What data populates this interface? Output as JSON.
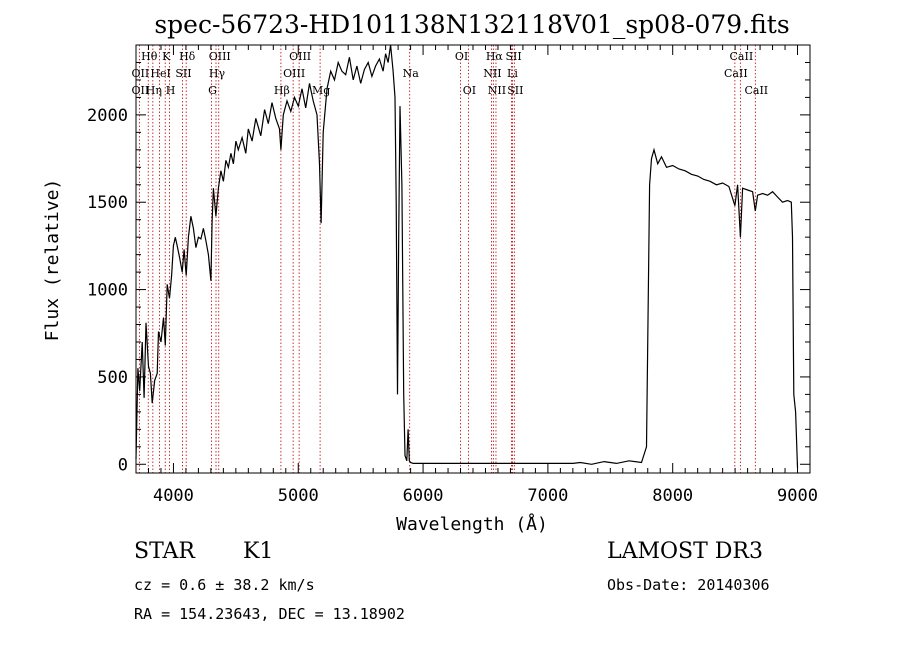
{
  "chart_data": {
    "type": "line",
    "title": "spec-56723-HD101138N132118V01_sp08-079.fits",
    "xlabel": "Wavelength (Å)",
    "ylabel": "Flux (relative)",
    "xlim": [
      3700,
      9100
    ],
    "ylim": [
      -50,
      2400
    ],
    "xticks": [
      4000,
      5000,
      6000,
      7000,
      8000,
      9000
    ],
    "yticks": [
      0,
      500,
      1000,
      1500,
      2000
    ],
    "series": [
      {
        "name": "flux",
        "points": [
          [
            3700,
            30
          ],
          [
            3715,
            550
          ],
          [
            3730,
            420
          ],
          [
            3750,
            700
          ],
          [
            3765,
            380
          ],
          [
            3780,
            810
          ],
          [
            3800,
            560
          ],
          [
            3815,
            520
          ],
          [
            3830,
            350
          ],
          [
            3850,
            480
          ],
          [
            3870,
            520
          ],
          [
            3880,
            760
          ],
          [
            3900,
            700
          ],
          [
            3920,
            840
          ],
          [
            3935,
            680
          ],
          [
            3950,
            1030
          ],
          [
            3968,
            950
          ],
          [
            3985,
            1080
          ],
          [
            4000,
            1250
          ],
          [
            4015,
            1300
          ],
          [
            4030,
            1250
          ],
          [
            4050,
            1180
          ],
          [
            4070,
            1100
          ],
          [
            4085,
            1230
          ],
          [
            4102,
            1080
          ],
          [
            4120,
            1300
          ],
          [
            4140,
            1420
          ],
          [
            4160,
            1350
          ],
          [
            4180,
            1240
          ],
          [
            4200,
            1300
          ],
          [
            4220,
            1290
          ],
          [
            4240,
            1350
          ],
          [
            4260,
            1280
          ],
          [
            4280,
            1200
          ],
          [
            4300,
            1050
          ],
          [
            4310,
            1390
          ],
          [
            4320,
            1580
          ],
          [
            4340,
            1420
          ],
          [
            4360,
            1580
          ],
          [
            4380,
            1680
          ],
          [
            4400,
            1620
          ],
          [
            4420,
            1740
          ],
          [
            4440,
            1700
          ],
          [
            4460,
            1780
          ],
          [
            4480,
            1720
          ],
          [
            4500,
            1850
          ],
          [
            4520,
            1800
          ],
          [
            4550,
            1870
          ],
          [
            4580,
            1780
          ],
          [
            4600,
            1920
          ],
          [
            4630,
            1850
          ],
          [
            4660,
            1980
          ],
          [
            4700,
            1880
          ],
          [
            4730,
            2030
          ],
          [
            4760,
            1950
          ],
          [
            4790,
            2070
          ],
          [
            4820,
            1980
          ],
          [
            4850,
            1920
          ],
          [
            4861,
            1800
          ],
          [
            4880,
            2000
          ],
          [
            4910,
            2080
          ],
          [
            4940,
            2020
          ],
          [
            4970,
            2100
          ],
          [
            5000,
            2050
          ],
          [
            5030,
            2150
          ],
          [
            5060,
            2040
          ],
          [
            5090,
            2180
          ],
          [
            5120,
            2080
          ],
          [
            5150,
            2000
          ],
          [
            5170,
            1720
          ],
          [
            5183,
            1380
          ],
          [
            5200,
            1900
          ],
          [
            5230,
            2150
          ],
          [
            5260,
            2250
          ],
          [
            5290,
            2200
          ],
          [
            5320,
            2300
          ],
          [
            5350,
            2250
          ],
          [
            5380,
            2230
          ],
          [
            5410,
            2330
          ],
          [
            5440,
            2200
          ],
          [
            5470,
            2280
          ],
          [
            5500,
            2180
          ],
          [
            5530,
            2260
          ],
          [
            5560,
            2300
          ],
          [
            5590,
            2220
          ],
          [
            5620,
            2280
          ],
          [
            5650,
            2320
          ],
          [
            5680,
            2250
          ],
          [
            5700,
            2350
          ],
          [
            5720,
            2300
          ],
          [
            5740,
            2400
          ],
          [
            5760,
            2250
          ],
          [
            5775,
            2100
          ],
          [
            5785,
            1500
          ],
          [
            5795,
            400
          ],
          [
            5805,
            1300
          ],
          [
            5815,
            2050
          ],
          [
            5830,
            1600
          ],
          [
            5845,
            400
          ],
          [
            5855,
            50
          ],
          [
            5870,
            20
          ],
          [
            5880,
            200
          ],
          [
            5890,
            20
          ],
          [
            5900,
            10
          ],
          [
            5920,
            5
          ],
          [
            6000,
            5
          ],
          [
            6500,
            5
          ],
          [
            7000,
            5
          ],
          [
            7200,
            5
          ],
          [
            7260,
            10
          ],
          [
            7350,
            0
          ],
          [
            7450,
            15
          ],
          [
            7550,
            5
          ],
          [
            7650,
            20
          ],
          [
            7750,
            10
          ],
          [
            7790,
            100
          ],
          [
            7815,
            1600
          ],
          [
            7830,
            1750
          ],
          [
            7850,
            1800
          ],
          [
            7880,
            1720
          ],
          [
            7910,
            1760
          ],
          [
            7950,
            1700
          ],
          [
            8000,
            1710
          ],
          [
            8050,
            1690
          ],
          [
            8100,
            1680
          ],
          [
            8150,
            1660
          ],
          [
            8200,
            1650
          ],
          [
            8250,
            1630
          ],
          [
            8300,
            1620
          ],
          [
            8350,
            1600
          ],
          [
            8400,
            1610
          ],
          [
            8450,
            1590
          ],
          [
            8498,
            1480
          ],
          [
            8520,
            1600
          ],
          [
            8542,
            1300
          ],
          [
            8560,
            1580
          ],
          [
            8600,
            1570
          ],
          [
            8640,
            1560
          ],
          [
            8662,
            1450
          ],
          [
            8680,
            1540
          ],
          [
            8720,
            1550
          ],
          [
            8760,
            1540
          ],
          [
            8800,
            1560
          ],
          [
            8840,
            1530
          ],
          [
            8880,
            1500
          ],
          [
            8920,
            1510
          ],
          [
            8950,
            1500
          ],
          [
            8960,
            1300
          ],
          [
            8970,
            400
          ],
          [
            8985,
            300
          ],
          [
            9000,
            -20
          ]
        ]
      }
    ],
    "lines": [
      {
        "name": "Hθ",
        "wavelength": 3798,
        "row": 0
      },
      {
        "name": "OII",
        "wavelength": 3727,
        "row": 1
      },
      {
        "name": "OII",
        "wavelength": 3727,
        "row": 2
      },
      {
        "name": "Hη",
        "wavelength": 3835,
        "row": 2
      },
      {
        "name": "HeI",
        "wavelength": 3889,
        "row": 1
      },
      {
        "name": "K",
        "wavelength": 3934,
        "row": 0
      },
      {
        "name": "H",
        "wavelength": 3969,
        "row": 2
      },
      {
        "name": "SII",
        "wavelength": 4072,
        "row": 1
      },
      {
        "name": "Hδ",
        "wavelength": 4102,
        "row": 0
      },
      {
        "name": "G",
        "wavelength": 4305,
        "row": 2
      },
      {
        "name": "OIII",
        "wavelength": 4363,
        "row": 0
      },
      {
        "name": "Hγ",
        "wavelength": 4341,
        "row": 1
      },
      {
        "name": "Hβ",
        "wavelength": 4861,
        "row": 2
      },
      {
        "name": "OIII",
        "wavelength": 4959,
        "row": 1
      },
      {
        "name": "OIII",
        "wavelength": 5007,
        "row": 0
      },
      {
        "name": "Mg",
        "wavelength": 5175,
        "row": 2
      },
      {
        "name": "Na",
        "wavelength": 5893,
        "row": 1
      },
      {
        "name": "OI",
        "wavelength": 6300,
        "row": 0
      },
      {
        "name": "OI",
        "wavelength": 6363,
        "row": 2
      },
      {
        "name": "NII",
        "wavelength": 6548,
        "row": 1
      },
      {
        "name": "Hα",
        "wavelength": 6563,
        "row": 0
      },
      {
        "name": "NII",
        "wavelength": 6584,
        "row": 2
      },
      {
        "name": "Li",
        "wavelength": 6708,
        "row": 1
      },
      {
        "name": "SII",
        "wavelength": 6717,
        "row": 0
      },
      {
        "name": "SII",
        "wavelength": 6731,
        "row": 2
      },
      {
        "name": "CaII",
        "wavelength": 8498,
        "row": 1
      },
      {
        "name": "CaII",
        "wavelength": 8542,
        "row": 0
      },
      {
        "name": "CaII",
        "wavelength": 8662,
        "row": 2
      }
    ]
  },
  "info": {
    "class": "STAR",
    "subclass": "K1",
    "survey": "LAMOST DR3",
    "redshift": "cz = 0.6 ± 38.2 km/s",
    "obsdate": "Obs-Date: 20140306",
    "coords": "RA = 154.23643, DEC =  13.18902"
  },
  "colors": {
    "line_marker": "#c00000",
    "spectrum": "#000000",
    "axis": "#000000"
  }
}
